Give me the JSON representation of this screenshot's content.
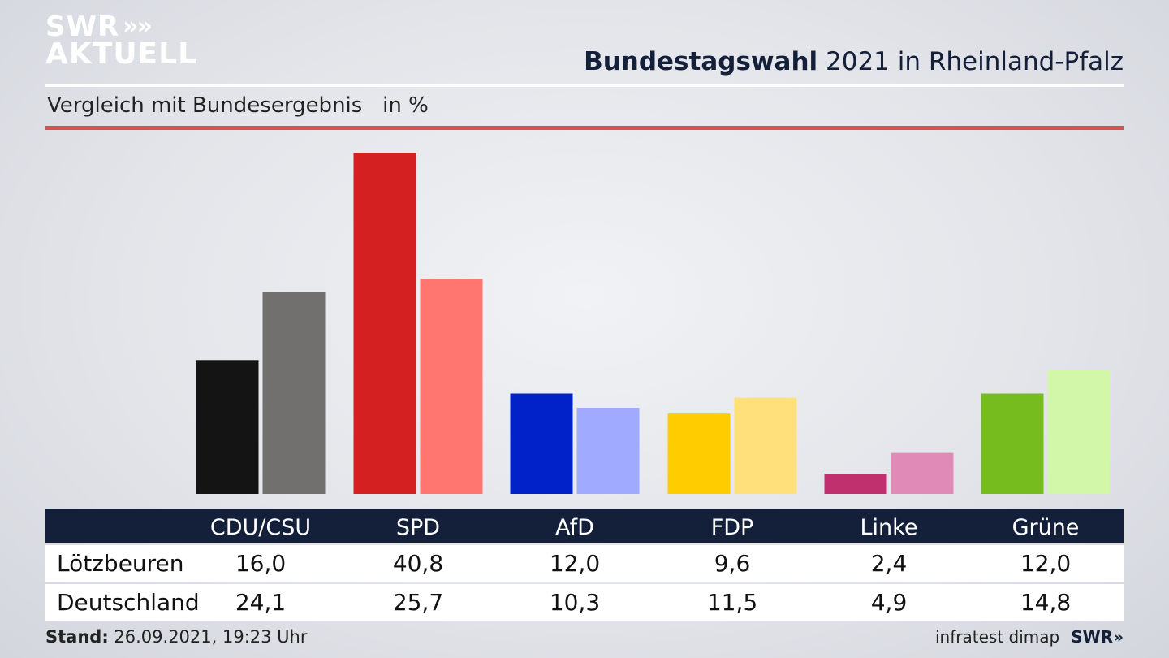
{
  "logo": {
    "line1": "SWR",
    "line1_chevrons": "»",
    "line2": "AKTUELL"
  },
  "header": {
    "title_bold": "Bundestagswahl",
    "title_rest": " 2021 in Rheinland-Pfalz",
    "subtitle": "Vergleich mit Bundesergebnis   in %"
  },
  "chart_data": {
    "type": "bar",
    "categories": [
      "CDU/CSU",
      "SPD",
      "AfD",
      "FDP",
      "Linke",
      "Grüne"
    ],
    "series": [
      {
        "name": "Lötzbeuren",
        "values": [
          16.0,
          40.8,
          12.0,
          9.6,
          2.4,
          12.0
        ],
        "colors": [
          "#141414",
          "#d42020",
          "#0022c8",
          "#ffcc00",
          "#c0306e",
          "#77bc1f"
        ]
      },
      {
        "name": "Deutschland",
        "values": [
          24.1,
          25.7,
          10.3,
          11.5,
          4.9,
          14.8
        ],
        "colors": [
          "#72706e",
          "#ff7570",
          "#a0aaff",
          "#ffe07a",
          "#e08ab8",
          "#d2f7a8"
        ]
      }
    ],
    "ylim": [
      0,
      42
    ],
    "grid": false
  },
  "table": {
    "headers": [
      "CDU/CSU",
      "SPD",
      "AfD",
      "FDP",
      "Linke",
      "Grüne"
    ],
    "rows": [
      {
        "label": "Lötzbeuren",
        "values": [
          "16,0",
          "40,8",
          "12,0",
          "9,6",
          "2,4",
          "12,0"
        ]
      },
      {
        "label": "Deutschland",
        "values": [
          "24,1",
          "25,7",
          "10,3",
          "11,5",
          "4,9",
          "14,8"
        ]
      }
    ]
  },
  "footer": {
    "stand_label": "Stand:",
    "stand_value": " 26.09.2021, 19:23 Uhr",
    "source": "infratest dimap",
    "brand": "SWR»"
  },
  "colors": {
    "navy": "#14203a",
    "accent_red": "#d65447"
  }
}
